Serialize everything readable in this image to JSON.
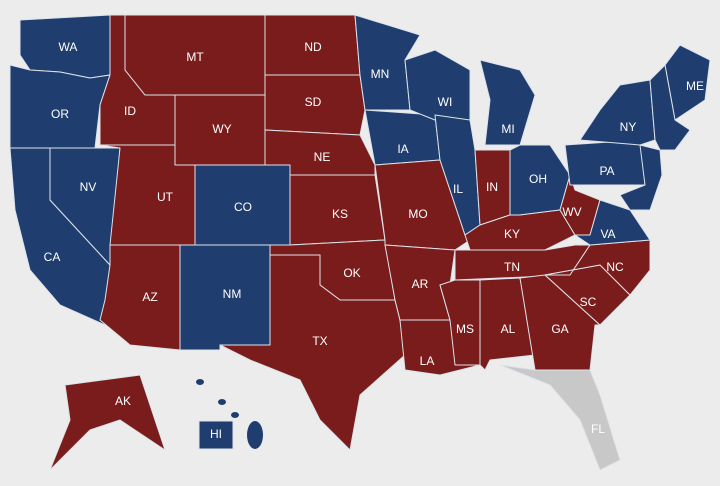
{
  "states": [
    {
      "label": "WA",
      "color": "#1f3d6e"
    },
    {
      "label": "OR",
      "color": "#1f3d6e"
    },
    {
      "label": "CA",
      "color": "#1f3d6e"
    },
    {
      "label": "NV",
      "color": "#1f3d6e"
    },
    {
      "label": "ID",
      "color": "#7b1c1c"
    },
    {
      "label": "MT",
      "color": "#7b1c1c"
    },
    {
      "label": "WY",
      "color": "#7b1c1c"
    },
    {
      "label": "UT",
      "color": "#7b1c1c"
    },
    {
      "label": "CO",
      "color": "#1f3d6e"
    },
    {
      "label": "AZ",
      "color": "#7b1c1c"
    },
    {
      "label": "NM",
      "color": "#1f3d6e"
    },
    {
      "label": "ND",
      "color": "#7b1c1c"
    },
    {
      "label": "SD",
      "color": "#7b1c1c"
    },
    {
      "label": "NE",
      "color": "#7b1c1c"
    },
    {
      "label": "KS",
      "color": "#7b1c1c"
    },
    {
      "label": "OK",
      "color": "#7b1c1c"
    },
    {
      "label": "TX",
      "color": "#7b1c1c"
    },
    {
      "label": "MN",
      "color": "#1f3d6e"
    },
    {
      "label": "IA",
      "color": "#1f3d6e"
    },
    {
      "label": "MO",
      "color": "#7b1c1c"
    },
    {
      "label": "AR",
      "color": "#7b1c1c"
    },
    {
      "label": "LA",
      "color": "#7b1c1c"
    },
    {
      "label": "WI",
      "color": "#1f3d6e"
    },
    {
      "label": "IL",
      "color": "#1f3d6e"
    },
    {
      "label": "MI",
      "color": "#1f3d6e"
    },
    {
      "label": "IN",
      "color": "#7b1c1c"
    },
    {
      "label": "OH",
      "color": "#1f3d6e"
    },
    {
      "label": "KY",
      "color": "#7b1c1c"
    },
    {
      "label": "TN",
      "color": "#7b1c1c"
    },
    {
      "label": "MS",
      "color": "#7b1c1c"
    },
    {
      "label": "AL",
      "color": "#7b1c1c"
    },
    {
      "label": "GA",
      "color": "#7b1c1c"
    },
    {
      "label": "SC",
      "color": "#7b1c1c"
    },
    {
      "label": "NC",
      "color": "#7b1c1c"
    },
    {
      "label": "FL",
      "color": "#c8c8c8"
    },
    {
      "label": "WV",
      "color": "#7b1c1c"
    },
    {
      "label": "VA",
      "color": "#1f3d6e"
    },
    {
      "label": "PA",
      "color": "#1f3d6e"
    },
    {
      "label": "NY",
      "color": "#1f3d6e"
    },
    {
      "label": "ME",
      "color": "#1f3d6e"
    },
    {
      "label": "AK",
      "color": "#7b1c1c"
    },
    {
      "label": "HI",
      "color": "#1f3d6e"
    }
  ]
}
